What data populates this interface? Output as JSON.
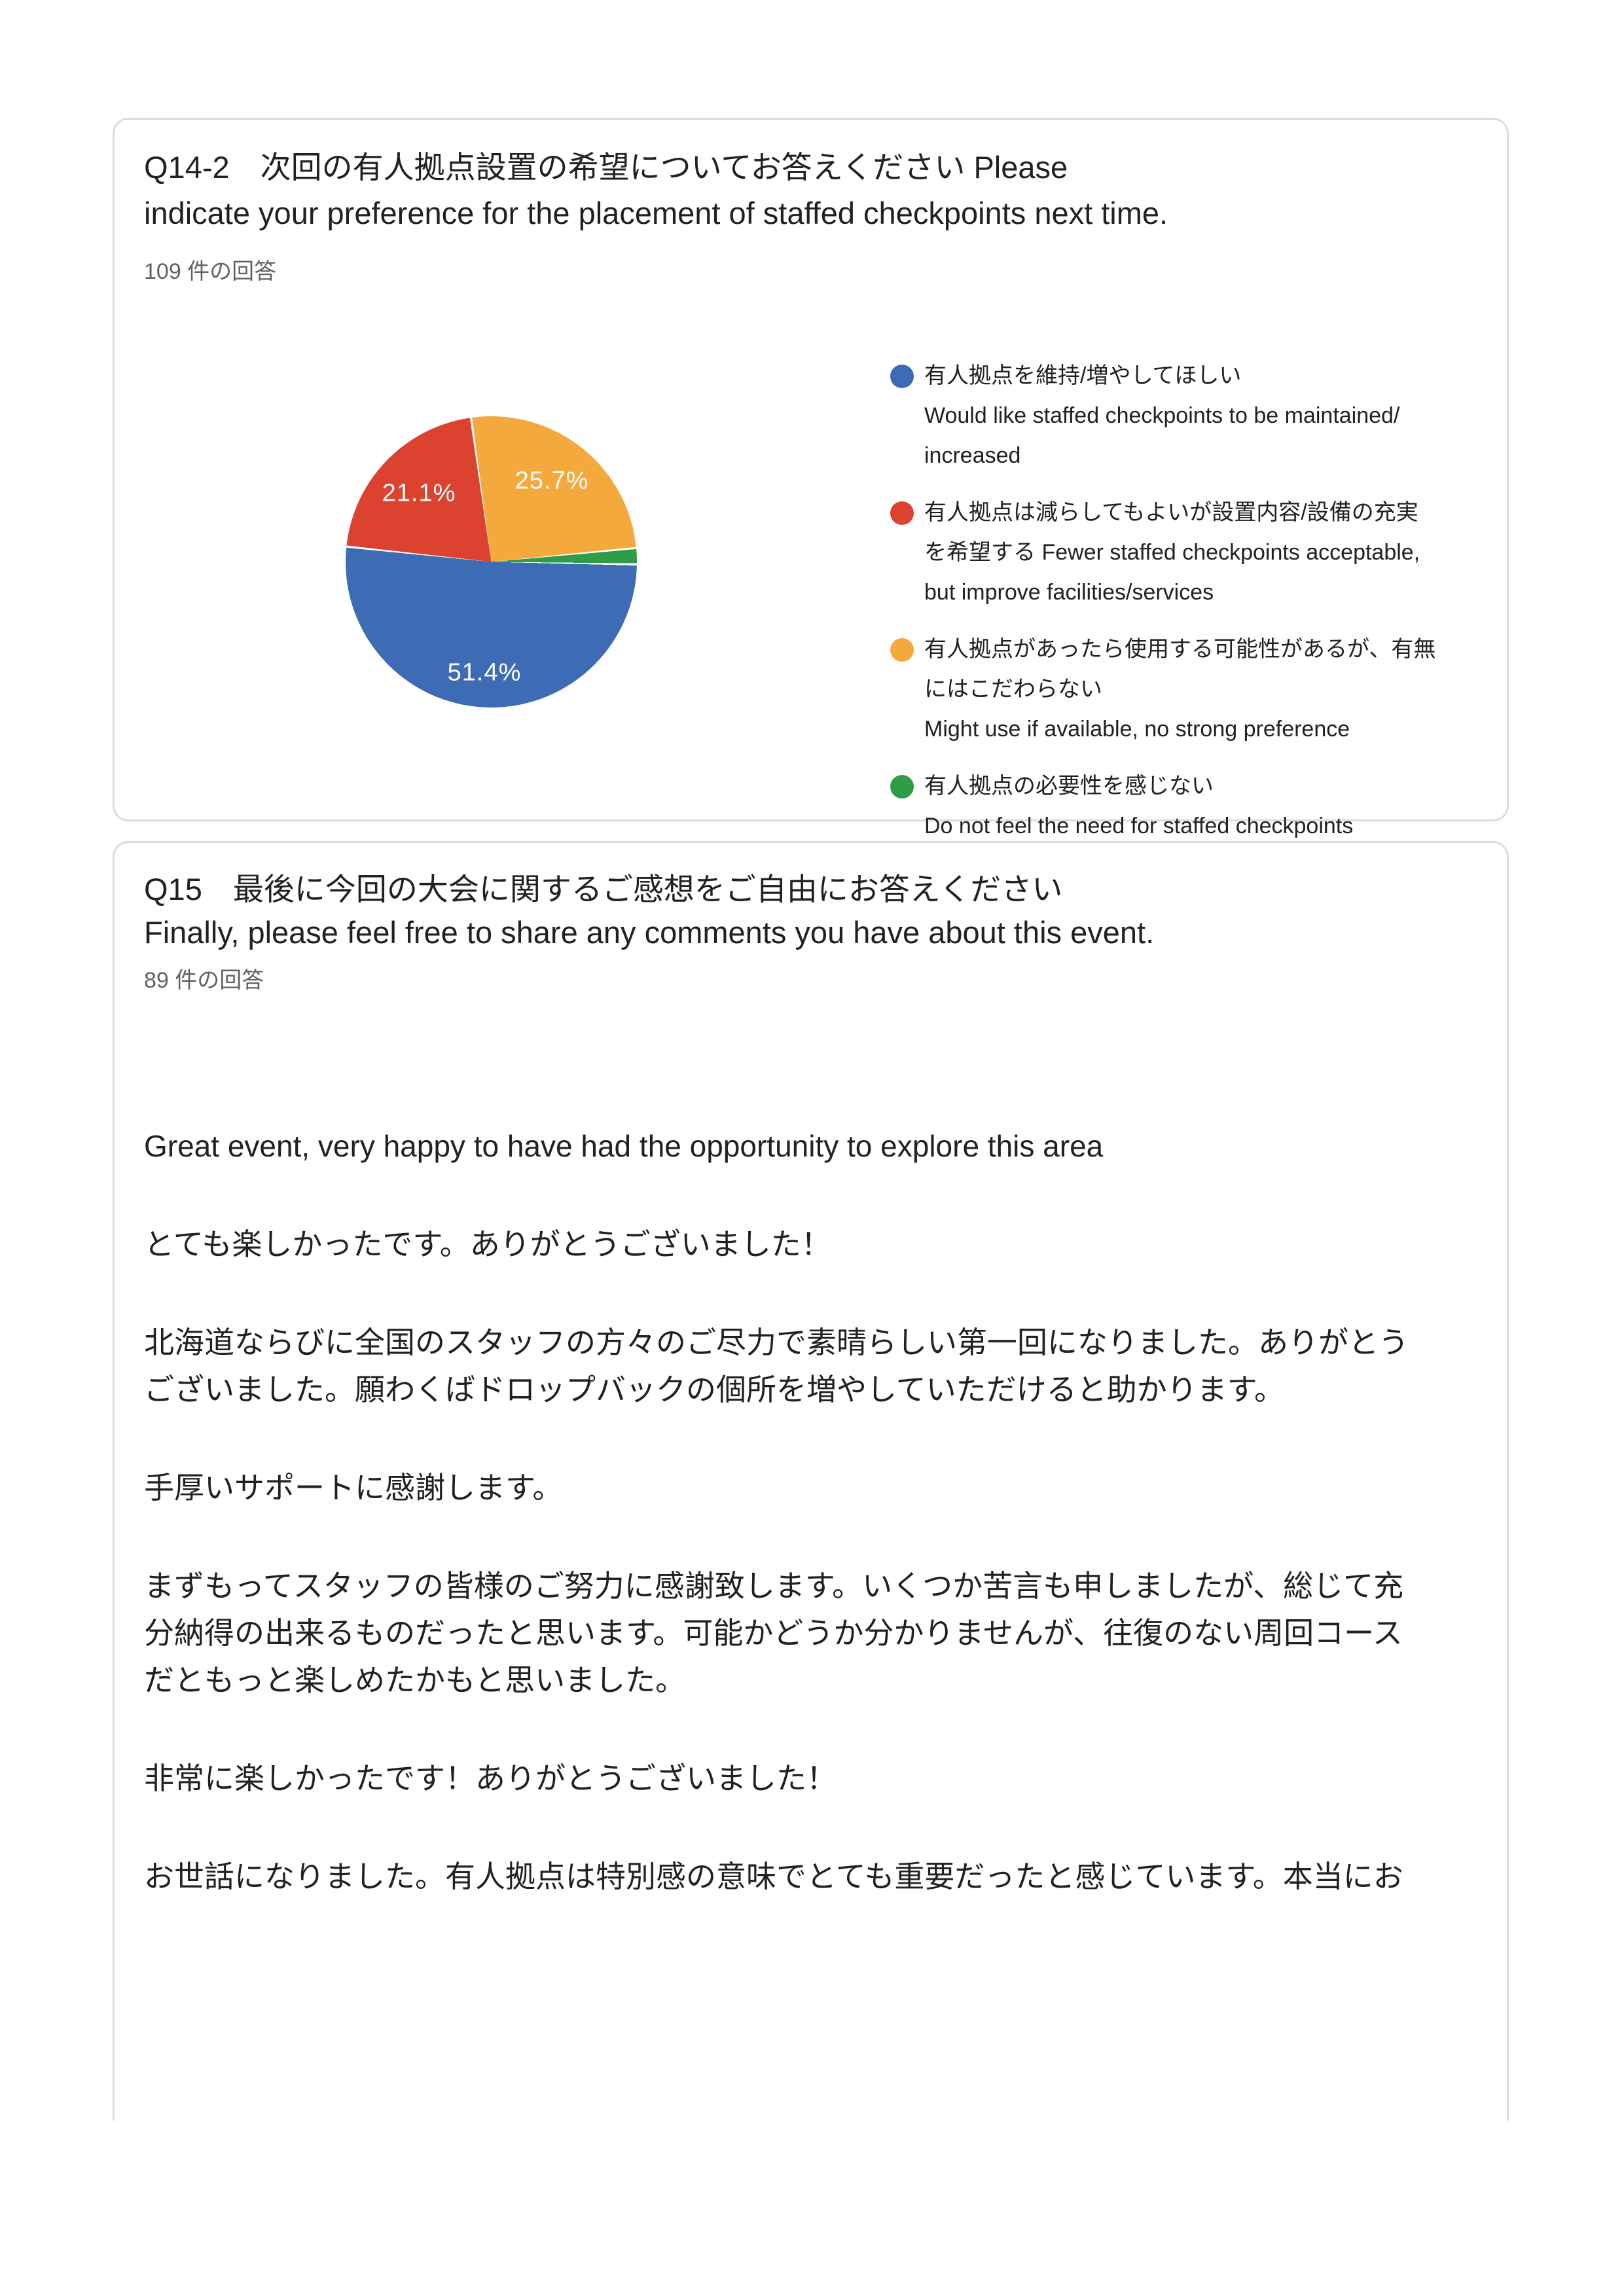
{
  "q14": {
    "title": "Q14-2　次回の有人拠点設置の希望についてお答えください Please\nindicate your preference for the placement of staffed checkpoints next time.",
    "responses_count": "109 件の回答",
    "legend": [
      {
        "label": "有人拠点を維持/増やしてほしい\nWould like staffed checkpoints to be maintained/\nincreased",
        "color": "#3D6CB5"
      },
      {
        "label": "有人拠点は減らしてもよいが設置内容/設備の充実\nを希望する Fewer staffed checkpoints acceptable,\nbut improve facilities/services",
        "color": "#DB4230"
      },
      {
        "label": "有人拠点があったら使用する可能性があるが、有無\nにはこだわらない\nMight use if available, no strong preference",
        "color": "#F4A93D"
      },
      {
        "label": "有人拠点の必要性を感じない\nDo not feel the need for staffed checkpoints",
        "color": "#2F9D47"
      }
    ]
  },
  "chart_data": {
    "type": "pie",
    "title": "Q14-2 次回の有人拠点設置の希望についてお答えください Please indicate your preference for the placement of staffed checkpoints next time.",
    "labels": [
      "有人拠点を維持/増やしてほしい Would like staffed checkpoints to be maintained/increased",
      "有人拠点は減らしてもよいが設置内容/設備の充実を希望する Fewer staffed checkpoints acceptable, but improve facilities/services",
      "有人拠点があったら使用する可能性があるが、有無にはこだわらない Might use if available, no strong preference",
      "有人拠点の必要性を感じない Do not feel the need for staffed checkpoints"
    ],
    "values": [
      51.4,
      21.1,
      25.7,
      1.8
    ],
    "display_labels": [
      "51.4%",
      "21.1%",
      "25.7%",
      ""
    ],
    "colors": [
      "#3D6CB5",
      "#DB4230",
      "#F4A93D",
      "#2F9D47"
    ],
    "start_angle_deg": 91,
    "slice_gap_pct": 0.12,
    "legend_position": "right",
    "total_responses": 109
  },
  "q15": {
    "title": "Q15　最後に今回の大会に関するご感想をご自由にお答えください\nFinally, please feel free to share any comments you have about this event.",
    "responses_count": "89 件の回答",
    "comments": [
      "Great event, very happy to have had the opportunity to explore this area",
      "とても楽しかったです。ありがとうございました！",
      "北海道ならびに全国のスタッフの方々のご尽力で素晴らしい第一回になりました。ありがとう\nございました。願わくばドロップバックの個所を増やしていただけると助かります。",
      "手厚いサポートに感謝します。",
      "まずもってスタッフの皆様のご努力に感謝致します。いくつか苦言も申しましたが、総じて充\n分納得の出来るものだったと思います。可能かどうか分かりませんが、往復のない周回コース\nだともっと楽しめたかもと思いました。",
      "非常に楽しかったです！ありがとうございました！",
      "お世話になりました。有人拠点は特別感の意味でとても重要だったと感じています。本当にお"
    ]
  }
}
